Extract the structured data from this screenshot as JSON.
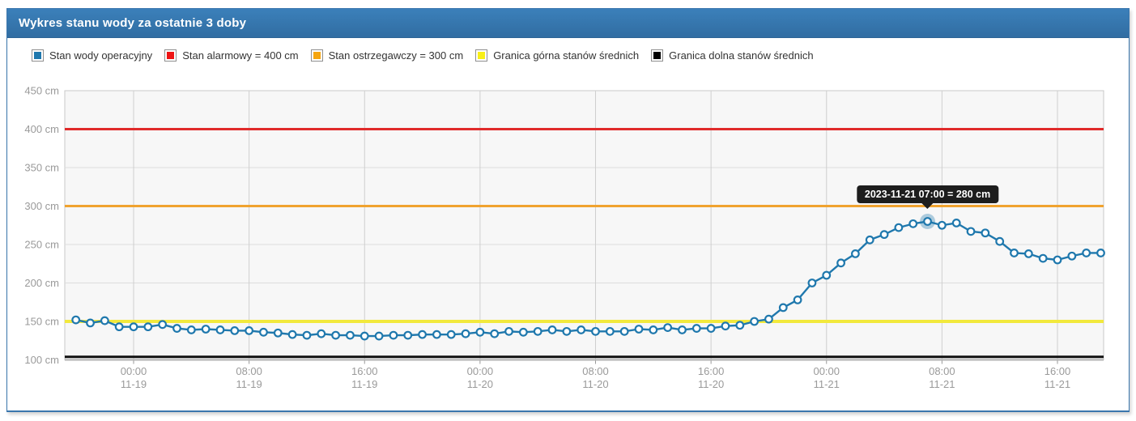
{
  "panel": {
    "title": "Wykres stanu wody za ostatnie 3 doby"
  },
  "legend": {
    "items": [
      {
        "label": "Stan wody operacyjny",
        "color": "#1f78ad"
      },
      {
        "label": "Stan alarmowy = 400 cm",
        "color": "#ee1414"
      },
      {
        "label": "Stan ostrzegawczy = 300 cm",
        "color": "#f5a50f"
      },
      {
        "label": "Granica górna stanów średnich",
        "color": "#f8ef18"
      },
      {
        "label": "Granica dolna stanów średnich",
        "color": "#000000"
      }
    ]
  },
  "tooltip": {
    "text": "2023-11-21 07:00 = 280 cm",
    "date": "2023-11-21",
    "time": "07:00",
    "value_cm": 280
  },
  "chart_data": {
    "type": "line",
    "title": "Wykres stanu wody za ostatnie 3 doby",
    "unit": "cm",
    "ylim": [
      100,
      450
    ],
    "y_ticks": [
      100,
      150,
      200,
      250,
      300,
      350,
      400,
      450
    ],
    "y_tick_suffix": " cm",
    "grid": true,
    "legend_position": "top",
    "x_start": "2023-11-18 20:00",
    "x_interval_hours": 1,
    "x_ticks": [
      {
        "time": "00:00",
        "date": "11-19",
        "hour": 4
      },
      {
        "time": "08:00",
        "date": "11-19",
        "hour": 12
      },
      {
        "time": "16:00",
        "date": "11-19",
        "hour": 20
      },
      {
        "time": "00:00",
        "date": "11-20",
        "hour": 28
      },
      {
        "time": "08:00",
        "date": "11-20",
        "hour": 36
      },
      {
        "time": "16:00",
        "date": "11-20",
        "hour": 44
      },
      {
        "time": "00:00",
        "date": "11-21",
        "hour": 52
      },
      {
        "time": "08:00",
        "date": "11-21",
        "hour": 60
      },
      {
        "time": "16:00",
        "date": "11-21",
        "hour": 68
      }
    ],
    "reference_lines": [
      {
        "id": "alarm-line",
        "name": "Stan alarmowy",
        "value": 400,
        "color": "#e02b2b",
        "width": 3
      },
      {
        "id": "warning-line",
        "name": "Stan ostrzegawczy",
        "value": 300,
        "color": "#f0a32f",
        "width": 3
      },
      {
        "id": "upper-mean-line",
        "name": "Granica górna stanów średnich",
        "value": 150,
        "color": "#f2e93c",
        "width": 4
      },
      {
        "id": "lower-mean-line",
        "name": "Granica dolna stanów średnich",
        "value": 104,
        "color": "#111111",
        "width": 3
      }
    ],
    "series": [
      {
        "name": "Stan wody operacyjny",
        "color": "#1f78ad",
        "marker_fill": "#ffffff",
        "values": [
          152,
          148,
          151,
          143,
          143,
          143,
          146,
          141,
          139,
          140,
          139,
          138,
          138,
          136,
          135,
          133,
          132,
          134,
          132,
          132,
          131,
          131,
          132,
          132,
          133,
          133,
          133,
          134,
          136,
          134,
          137,
          136,
          137,
          139,
          137,
          139,
          137,
          137,
          137,
          140,
          139,
          142,
          139,
          141,
          141,
          144,
          145,
          150,
          153,
          168,
          178,
          200,
          210,
          226,
          238,
          256,
          263,
          272,
          277,
          280,
          275,
          278,
          267,
          265,
          254,
          239,
          238,
          232,
          230,
          235,
          239,
          239
        ]
      }
    ],
    "highlight_index": 59,
    "highlight_halo_color": "rgba(31,120,173,0.35)"
  }
}
